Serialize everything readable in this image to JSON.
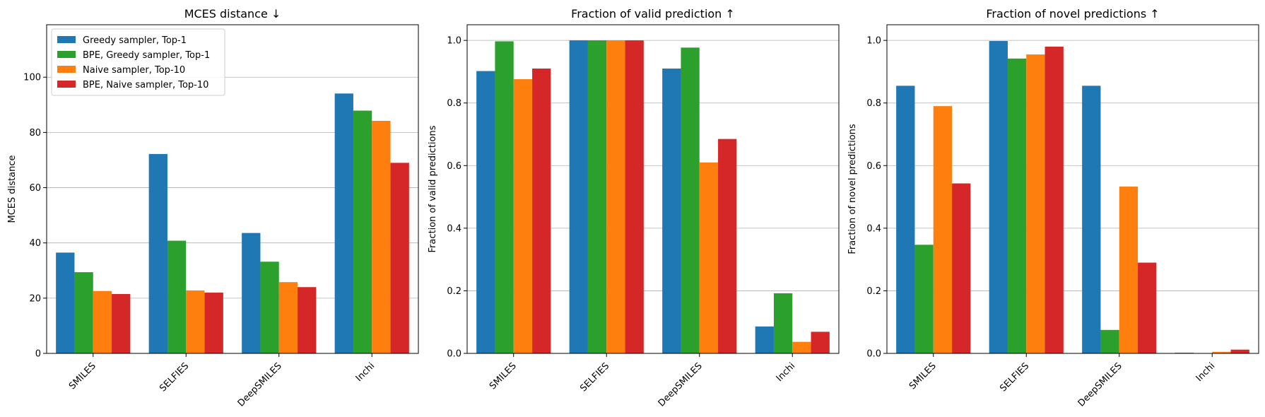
{
  "chart_data": [
    {
      "type": "bar",
      "title": "MCES distance ↓",
      "xlabel": "",
      "ylabel": "MCES distance",
      "ylim": [
        0,
        119
      ],
      "yticks": [
        0,
        20,
        40,
        60,
        80,
        100
      ],
      "ytick_labels": [
        "0",
        "20",
        "40",
        "60",
        "80",
        "100"
      ],
      "grid": "horizontal",
      "legend": "top-left",
      "categories": [
        "SMILES",
        "SELFIES",
        "DeepSMILES",
        "Inchi"
      ],
      "series": [
        {
          "name": "Greedy sampler, Top-1",
          "color": "#1f77b4",
          "values": [
            36.5,
            72.2,
            43.6,
            94.1
          ]
        },
        {
          "name": "BPE, Greedy sampler, Top-1",
          "color": "#2ca02c",
          "values": [
            29.4,
            40.8,
            33.2,
            87.9
          ]
        },
        {
          "name": "Naive sampler, Top-10",
          "color": "#ff7f0e",
          "values": [
            22.6,
            22.8,
            25.8,
            84.2
          ]
        },
        {
          "name": "BPE, Naive sampler, Top-10",
          "color": "#d62728",
          "values": [
            21.5,
            22.0,
            24.0,
            69.0
          ]
        }
      ]
    },
    {
      "type": "bar",
      "title": "Fraction of valid prediction ↑",
      "xlabel": "",
      "ylabel": "Fraction of valid predictions",
      "ylim": [
        0,
        1.05
      ],
      "yticks": [
        0,
        0.2,
        0.4,
        0.6,
        0.8,
        1.0
      ],
      "ytick_labels": [
        "0.0",
        "0.2",
        "0.4",
        "0.6",
        "0.8",
        "1.0"
      ],
      "grid": "horizontal",
      "categories": [
        "SMILES",
        "SELFIES",
        "DeepSMILES",
        "Inchi"
      ],
      "series": [
        {
          "color": "#1f77b4",
          "values": [
            0.902,
            1.0,
            0.91,
            0.086
          ]
        },
        {
          "color": "#2ca02c",
          "values": [
            0.997,
            1.0,
            0.977,
            0.192
          ]
        },
        {
          "color": "#ff7f0e",
          "values": [
            0.876,
            1.0,
            0.61,
            0.037
          ]
        },
        {
          "color": "#d62728",
          "values": [
            0.91,
            1.0,
            0.685,
            0.069
          ]
        }
      ]
    },
    {
      "type": "bar",
      "title": "Fraction of novel predictions ↑",
      "xlabel": "",
      "ylabel": "Fraction of novel predictions",
      "ylim": [
        0,
        1.05
      ],
      "yticks": [
        0,
        0.2,
        0.4,
        0.6,
        0.8,
        1.0
      ],
      "ytick_labels": [
        "0.0",
        "0.2",
        "0.4",
        "0.6",
        "0.8",
        "1.0"
      ],
      "grid": "horizontal",
      "categories": [
        "SMILES",
        "SELFIES",
        "DeepSMILES",
        "Inchi"
      ],
      "series": [
        {
          "color": "#1f77b4",
          "values": [
            0.855,
            0.998,
            0.855,
            0.002
          ]
        },
        {
          "color": "#2ca02c",
          "values": [
            0.347,
            0.942,
            0.075,
            0.0
          ]
        },
        {
          "color": "#ff7f0e",
          "values": [
            0.79,
            0.955,
            0.533,
            0.005
          ]
        },
        {
          "color": "#d62728",
          "values": [
            0.543,
            0.98,
            0.29,
            0.012
          ]
        }
      ]
    }
  ]
}
